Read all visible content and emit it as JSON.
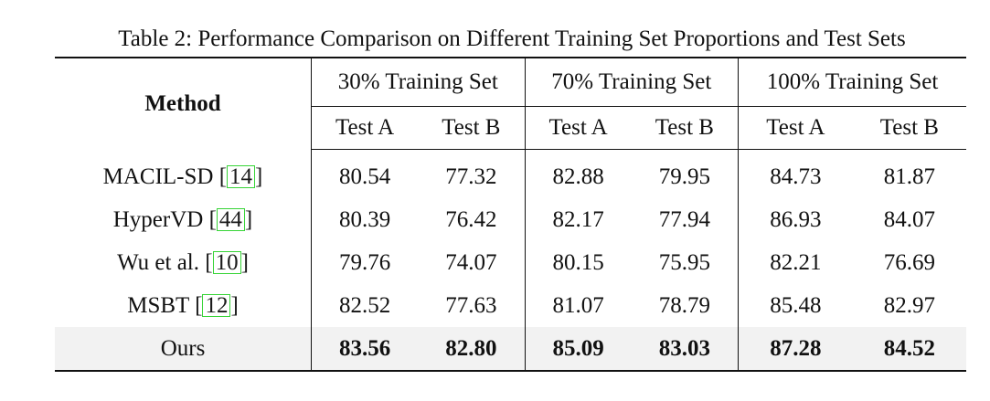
{
  "caption": "Table 2: Performance Comparison on Different Training Set Proportions and Test Sets",
  "header": {
    "method": "Method",
    "groups": [
      "30% Training Set",
      "70% Training Set",
      "100% Training Set"
    ],
    "subcolumns": [
      "Test A",
      "Test B",
      "Test A",
      "Test B",
      "Test A",
      "Test B"
    ]
  },
  "rows": [
    {
      "method": "MACIL-SD",
      "cite": "14",
      "values": [
        "80.54",
        "77.32",
        "82.88",
        "79.95",
        "84.73",
        "81.87"
      ]
    },
    {
      "method": "HyperVD",
      "cite": "44",
      "values": [
        "80.39",
        "76.42",
        "82.17",
        "77.94",
        "86.93",
        "84.07"
      ]
    },
    {
      "method": "Wu et al.",
      "cite": "10",
      "values": [
        "79.76",
        "74.07",
        "80.15",
        "75.95",
        "82.21",
        "76.69"
      ]
    },
    {
      "method": "MSBT",
      "cite": "12",
      "values": [
        "82.52",
        "77.63",
        "81.07",
        "78.79",
        "85.48",
        "82.97"
      ]
    }
  ],
  "ours": {
    "method": "Ours",
    "values": [
      "83.56",
      "82.80",
      "85.09",
      "83.03",
      "87.28",
      "84.52"
    ]
  },
  "colors": {
    "citation_box": "#37d437",
    "ours_highlight": "#f2f2f2"
  }
}
